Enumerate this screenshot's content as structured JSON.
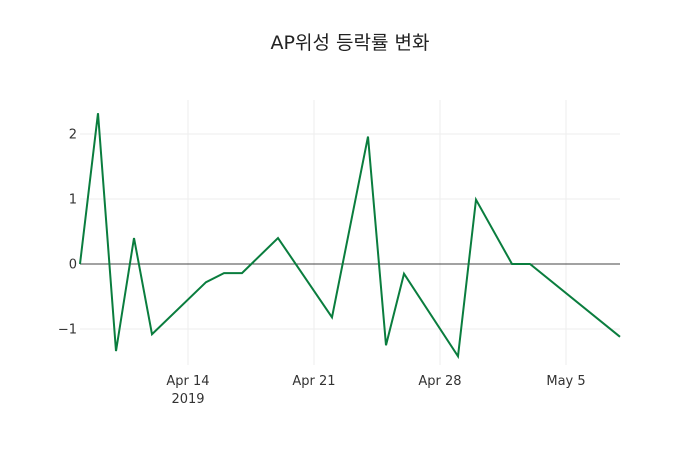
{
  "chart_data": {
    "type": "line",
    "title": "AP위성 등락률 변화",
    "xlabel": "",
    "ylabel": "",
    "x": [
      "2019-04-08",
      "2019-04-09",
      "2019-04-10",
      "2019-04-11",
      "2019-04-12",
      "2019-04-15",
      "2019-04-16",
      "2019-04-17",
      "2019-04-19",
      "2019-04-22",
      "2019-04-24",
      "2019-04-25",
      "2019-04-26",
      "2019-04-29",
      "2019-04-30",
      "2019-05-02",
      "2019-05-03",
      "2019-05-08"
    ],
    "series": [
      {
        "name": "등락률",
        "color": "#0a7d3e",
        "values": [
          0,
          2.32,
          -1.34,
          0.4,
          -1.08,
          -0.28,
          -0.14,
          -0.14,
          0.4,
          -0.82,
          1.96,
          -1.25,
          -0.15,
          -1.42,
          0.99,
          0,
          0,
          -1.12
        ]
      }
    ],
    "x_ticks": [
      {
        "label": "Apr 14",
        "sub": "2019",
        "date": "2019-04-14"
      },
      {
        "label": "Apr 21",
        "date": "2019-04-21"
      },
      {
        "label": "Apr 28",
        "date": "2019-04-28"
      },
      {
        "label": "May 5",
        "date": "2019-05-05"
      }
    ],
    "y_ticks": [
      {
        "label": "2",
        "value": 2
      },
      {
        "label": "1",
        "value": 1
      },
      {
        "label": "0",
        "value": 0
      },
      {
        "label": "−1",
        "value": -1
      }
    ],
    "ylim": [
      -1.55,
      2.5
    ],
    "grid": true,
    "legend": false
  }
}
